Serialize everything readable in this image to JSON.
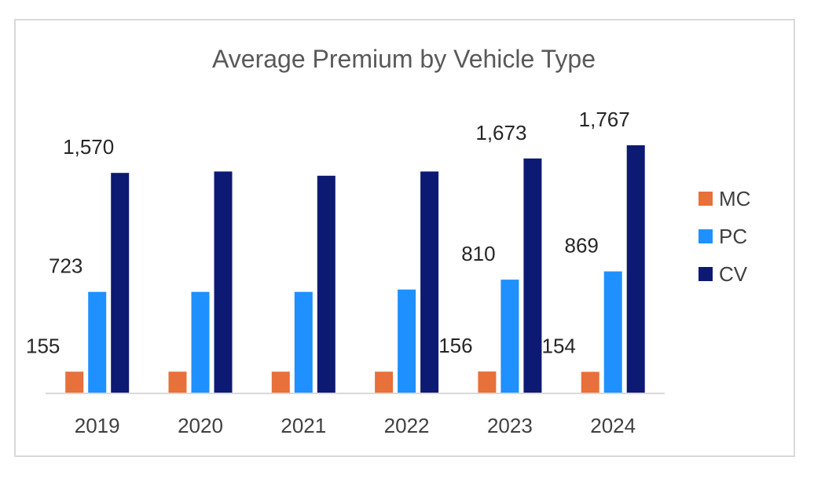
{
  "chart_data": {
    "type": "bar",
    "title": "Average Premium by Vehicle Type",
    "xlabel": "",
    "ylabel": "",
    "categories": [
      "2019",
      "2020",
      "2021",
      "2022",
      "2023",
      "2024"
    ],
    "series": [
      {
        "name": "MC",
        "color": "#e8703a",
        "values": [
          155,
          155,
          155,
          155,
          156,
          154
        ]
      },
      {
        "name": "PC",
        "color": "#1e90ff",
        "values": [
          723,
          723,
          723,
          740,
          810,
          869
        ]
      },
      {
        "name": "CV",
        "color": "#0d1a73",
        "values": [
          1570,
          1580,
          1550,
          1580,
          1673,
          1767
        ]
      }
    ],
    "data_labels": [
      {
        "category": "2019",
        "series": "MC",
        "text": "155"
      },
      {
        "category": "2019",
        "series": "PC",
        "text": "723"
      },
      {
        "category": "2019",
        "series": "CV",
        "text": "1,570"
      },
      {
        "category": "2023",
        "series": "MC",
        "text": "156"
      },
      {
        "category": "2023",
        "series": "PC",
        "text": "810"
      },
      {
        "category": "2023",
        "series": "CV",
        "text": "1,673"
      },
      {
        "category": "2024",
        "series": "MC",
        "text": "154"
      },
      {
        "category": "2024",
        "series": "PC",
        "text": "869"
      },
      {
        "category": "2024",
        "series": "CV",
        "text": "1,767"
      }
    ],
    "ylim": [
      0,
      1767
    ],
    "grid": false,
    "legend_position": "right"
  }
}
